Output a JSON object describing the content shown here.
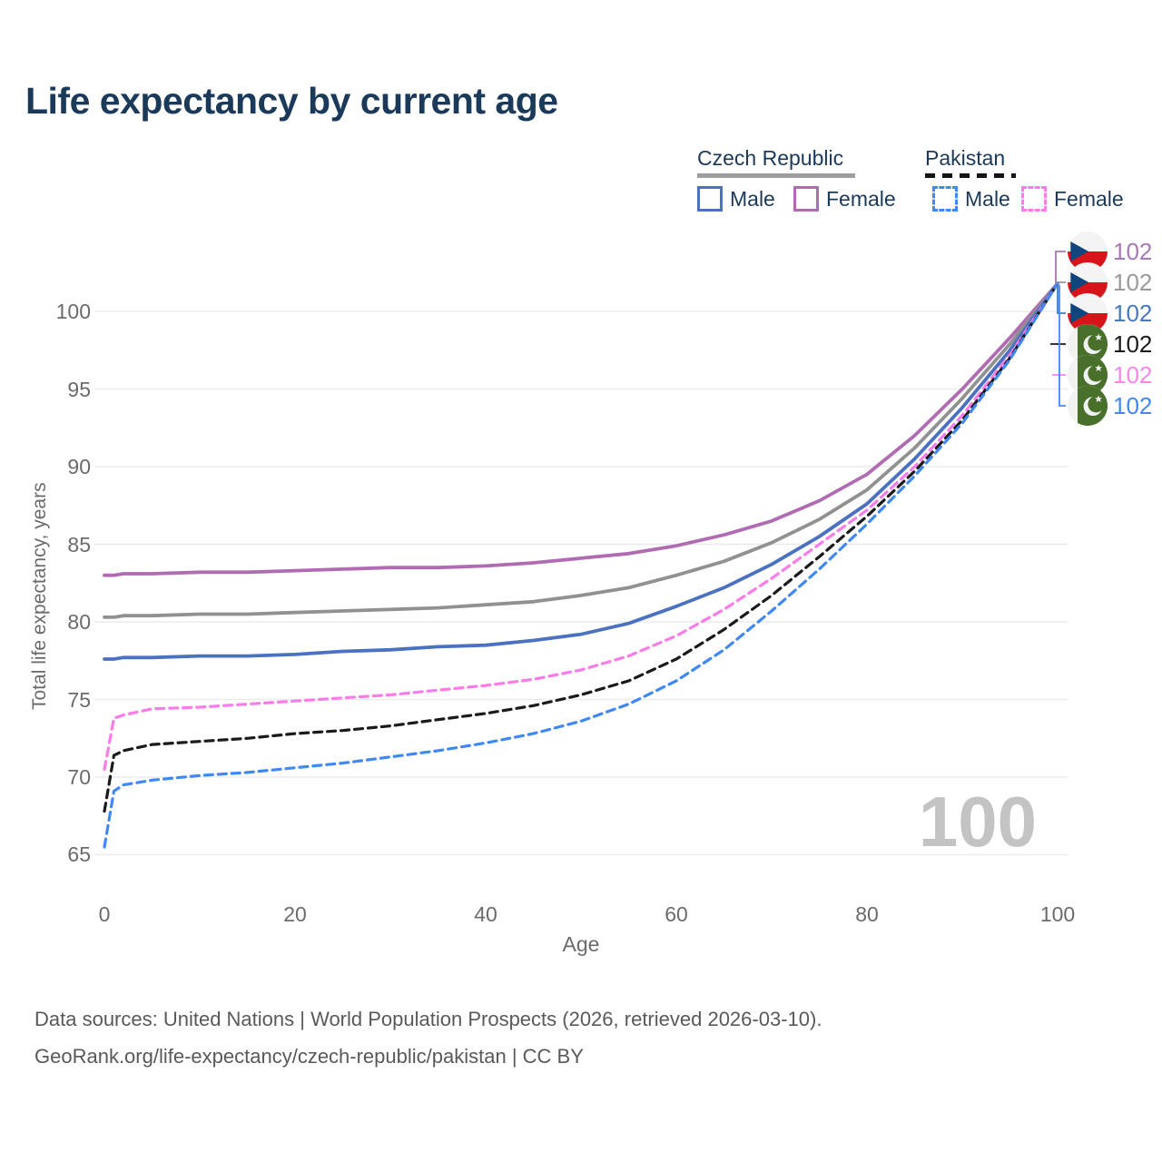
{
  "title": "Life expectancy by current age",
  "legend": {
    "czech": {
      "title": "Czech Republic",
      "male": "Male",
      "female": "Female",
      "line_style": "solid"
    },
    "pakistan": {
      "title": "Pakistan",
      "male": "Male",
      "female": "Female",
      "line_style": "dashed"
    }
  },
  "watermark": {
    "text": "100"
  },
  "endpoints": {
    "rows": [
      {
        "country": "Czech Republic",
        "series": "czech-female",
        "flag": "czech-flag",
        "value": "102",
        "color": "#a878b8"
      },
      {
        "country": "Czech Republic",
        "series": "czech-total",
        "flag": "czech-flag",
        "value": "102",
        "color": "#9a9a9a"
      },
      {
        "country": "Czech Republic",
        "series": "czech-male",
        "flag": "czech-flag",
        "value": "102",
        "color": "#4a78bd"
      },
      {
        "country": "Pakistan",
        "series": "pakistan-total",
        "flag": "pakistan-flag",
        "value": "102",
        "color": "#1a1a1a"
      },
      {
        "country": "Pakistan",
        "series": "pakistan-female",
        "flag": "pakistan-flag",
        "value": "102",
        "color": "#f886ea"
      },
      {
        "country": "Pakistan",
        "series": "pakistan-male",
        "flag": "pakistan-flag",
        "value": "102",
        "color": "#4089f5"
      }
    ]
  },
  "footer": {
    "line1": "Data sources: United Nations | World Population Prospects (2026, retrieved 2026-03-10).",
    "line2": "GeoRank.org/life-expectancy/czech-republic/pakistan | CC BY"
  },
  "colors": {
    "title_text": "#1b3a5a",
    "axis_text": "#6b6b6b",
    "gridline": "#ebebeb",
    "watermark": "#c3c3c3",
    "czech_flag_red": "#d7141a",
    "czech_flag_blue": "#11457e",
    "pakistan_flag_green": "#48702a"
  },
  "chart_data": {
    "type": "line",
    "title": "Life expectancy by current age",
    "xlabel": "Age",
    "ylabel": "Total life expectancy, years",
    "xlim": [
      0,
      100
    ],
    "ylim": [
      63,
      103
    ],
    "x_ticks": [
      0,
      20,
      40,
      60,
      80,
      100
    ],
    "y_ticks": [
      65,
      70,
      75,
      80,
      85,
      90,
      95,
      100
    ],
    "x_tick_labels": [
      "0",
      "20",
      "40",
      "60",
      "80",
      "100"
    ],
    "y_tick_labels": [
      "100",
      "95",
      "90",
      "85",
      "80",
      "75",
      "70",
      "65"
    ],
    "grid": "horizontal-only",
    "legend_position": "top-right",
    "ages": [
      0,
      1,
      2,
      5,
      10,
      15,
      20,
      25,
      30,
      35,
      40,
      45,
      50,
      55,
      60,
      65,
      70,
      75,
      80,
      85,
      90,
      95,
      100
    ],
    "series": [
      {
        "id": "czech-female",
        "name": "Czech Republic Female",
        "country": "Czech Republic",
        "sex": "Female",
        "line_style": "solid",
        "color": "#b16bb3",
        "values": [
          83.0,
          83.0,
          83.1,
          83.1,
          83.2,
          83.2,
          83.3,
          83.4,
          83.5,
          83.5,
          83.6,
          83.8,
          84.1,
          84.4,
          84.9,
          85.6,
          86.5,
          87.8,
          89.5,
          92.0,
          95.0,
          98.3,
          101.8
        ]
      },
      {
        "id": "czech-total",
        "name": "Czech Republic Both sexes",
        "country": "Czech Republic",
        "sex": "Both",
        "line_style": "solid",
        "color": "#919191",
        "values": [
          80.3,
          80.3,
          80.4,
          80.4,
          80.5,
          80.5,
          80.6,
          80.7,
          80.8,
          80.9,
          81.1,
          81.3,
          81.7,
          82.2,
          83.0,
          83.9,
          85.1,
          86.6,
          88.5,
          91.2,
          94.4,
          97.9,
          101.8
        ]
      },
      {
        "id": "czech-male",
        "name": "Czech Republic Male",
        "country": "Czech Republic",
        "sex": "Male",
        "line_style": "solid",
        "color": "#4a72c0",
        "values": [
          77.6,
          77.6,
          77.7,
          77.7,
          77.8,
          77.8,
          77.9,
          78.1,
          78.2,
          78.4,
          78.5,
          78.8,
          79.2,
          79.9,
          81.0,
          82.2,
          83.7,
          85.5,
          87.6,
          90.5,
          93.8,
          97.5,
          101.8
        ]
      },
      {
        "id": "pakistan-female",
        "name": "Pakistan Female",
        "country": "Pakistan",
        "sex": "Female",
        "line_style": "dashed",
        "color": "#fb7ce8",
        "values": [
          70.5,
          73.8,
          74.0,
          74.4,
          74.5,
          74.7,
          74.9,
          75.1,
          75.3,
          75.6,
          75.9,
          76.3,
          76.9,
          77.8,
          79.1,
          80.8,
          82.8,
          85.0,
          87.2,
          90.0,
          93.3,
          97.2,
          101.8
        ]
      },
      {
        "id": "pakistan-total",
        "name": "Pakistan Both sexes",
        "country": "Pakistan",
        "sex": "Both",
        "line_style": "dashed",
        "color": "#1a1a1a",
        "values": [
          67.8,
          71.4,
          71.7,
          72.1,
          72.3,
          72.5,
          72.8,
          73.0,
          73.3,
          73.7,
          74.1,
          74.6,
          75.3,
          76.2,
          77.6,
          79.5,
          81.7,
          84.2,
          86.8,
          89.7,
          93.0,
          97.0,
          101.8
        ]
      },
      {
        "id": "pakistan-male",
        "name": "Pakistan Male",
        "country": "Pakistan",
        "sex": "Male",
        "line_style": "dashed",
        "color": "#4089f5",
        "values": [
          65.5,
          69.1,
          69.5,
          69.8,
          70.1,
          70.3,
          70.6,
          70.9,
          71.3,
          71.7,
          72.2,
          72.8,
          73.6,
          74.7,
          76.2,
          78.2,
          80.7,
          83.4,
          86.3,
          89.4,
          92.8,
          96.9,
          101.8
        ]
      }
    ]
  }
}
